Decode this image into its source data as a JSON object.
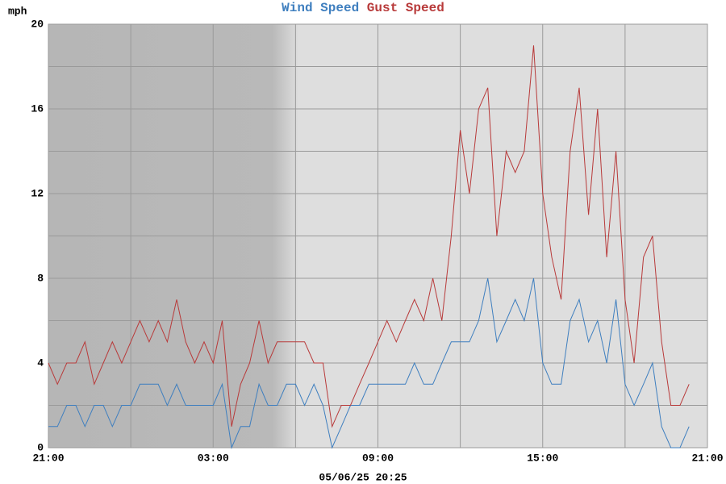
{
  "chart_data": {
    "type": "line",
    "y_label": "mph",
    "x": [
      0,
      0.33,
      0.67,
      1,
      1.33,
      1.67,
      2,
      2.33,
      2.67,
      3,
      3.33,
      3.67,
      4,
      4.33,
      4.67,
      5,
      5.33,
      5.67,
      6,
      6.33,
      6.67,
      7,
      7.33,
      7.67,
      8,
      8.33,
      8.67,
      9,
      9.33,
      9.67,
      10,
      10.33,
      10.67,
      11,
      11.33,
      11.67,
      12,
      12.33,
      12.67,
      13,
      13.33,
      13.67,
      14,
      14.33,
      14.67,
      15,
      15.33,
      15.67,
      16,
      16.33,
      16.67,
      17,
      17.33,
      17.67,
      18,
      18.33,
      18.67,
      19,
      19.33,
      19.67,
      20,
      20.33,
      20.67,
      21,
      21.33,
      21.67,
      22,
      22.33,
      22.67,
      23,
      23.33
    ],
    "series": [
      {
        "name": "Wind Speed",
        "color": "#3f7fbf",
        "values": [
          1,
          1,
          2,
          2,
          1,
          2,
          2,
          1,
          2,
          2,
          3,
          3,
          3,
          2,
          3,
          2,
          2,
          2,
          2,
          3,
          0,
          1,
          1,
          3,
          2,
          2,
          3,
          3,
          2,
          3,
          2,
          0,
          1,
          2,
          2,
          3,
          3,
          3,
          3,
          3,
          4,
          3,
          3,
          4,
          5,
          5,
          5,
          6,
          8,
          5,
          6,
          7,
          6,
          8,
          4,
          3,
          3,
          6,
          7,
          5,
          6,
          4,
          7,
          3,
          2,
          3,
          4,
          1,
          0,
          0,
          1
        ]
      },
      {
        "name": "Gust Speed",
        "color": "#b83a3a",
        "values": [
          4,
          3,
          4,
          4,
          5,
          3,
          4,
          5,
          4,
          5,
          6,
          5,
          6,
          5,
          7,
          5,
          4,
          5,
          4,
          6,
          1,
          3,
          4,
          6,
          4,
          5,
          5,
          5,
          5,
          4,
          4,
          1,
          2,
          2,
          3,
          4,
          5,
          6,
          5,
          6,
          7,
          6,
          8,
          6,
          10,
          15,
          12,
          16,
          17,
          10,
          14,
          13,
          14,
          19,
          12,
          9,
          7,
          14,
          17,
          11,
          16,
          9,
          14,
          7,
          4,
          9,
          10,
          5,
          2,
          2,
          3
        ]
      }
    ],
    "xlim": [
      0,
      24
    ],
    "xticks": [
      {
        "value": 0,
        "label": "21:00"
      },
      {
        "value": 6,
        "label": "03:00"
      },
      {
        "value": 12,
        "label": "09:00"
      },
      {
        "value": 18,
        "label": "15:00"
      },
      {
        "value": 24,
        "label": "21:00"
      }
    ],
    "xminor": [
      3,
      9,
      15,
      21
    ],
    "ylim": [
      0,
      20
    ],
    "yticks": [
      0,
      4,
      8,
      12,
      16,
      20
    ],
    "yminor": [
      2,
      6,
      10,
      14,
      18
    ],
    "grid": true
  },
  "timestamp": "05/06/25 20:25"
}
